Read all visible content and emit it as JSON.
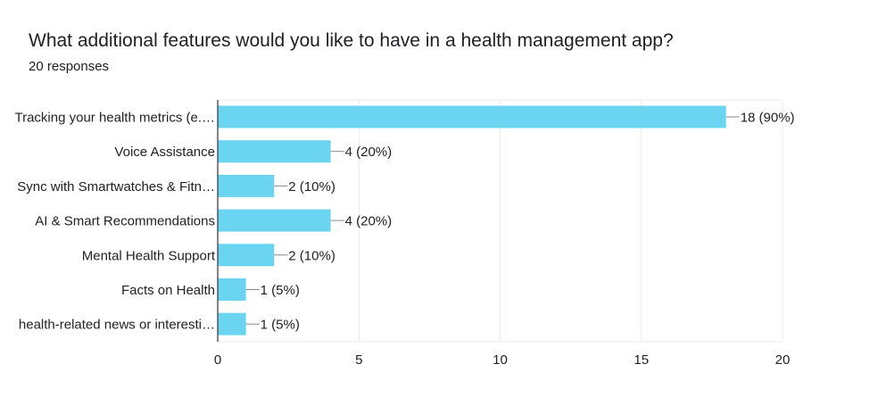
{
  "title": "What additional features would you like to have in a health management app?",
  "subtitle": "20 responses",
  "colors": {
    "bar": "#6bd5f1",
    "grid": "#ebebeb",
    "axis": "#333333",
    "leader": "#888888"
  },
  "chart_data": {
    "type": "bar",
    "orientation": "horizontal",
    "title": "What additional features would you like to have in a health management app?",
    "subtitle": "20 responses",
    "categories": [
      "Tracking your health metrics (e.…",
      "Voice Assistance",
      "Sync with Smartwatches & Fitn…",
      "AI & Smart Recommendations",
      "Mental Health Support",
      "Facts on Health",
      "health-related news or interesti…"
    ],
    "values": [
      18,
      4,
      2,
      4,
      2,
      1,
      1
    ],
    "data_labels": [
      "18 (90%)",
      "4 (20%)",
      "2 (10%)",
      "4 (20%)",
      "2 (10%)",
      "1 (5%)",
      "1 (5%)"
    ],
    "xlim": [
      0,
      20
    ],
    "xticks": [
      0,
      5,
      10,
      15,
      20
    ],
    "grid": true,
    "legend": "none"
  }
}
